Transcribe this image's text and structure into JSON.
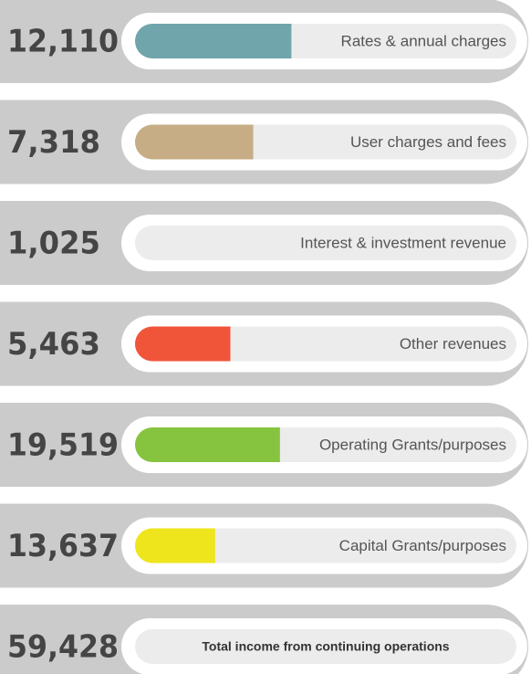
{
  "items": [
    {
      "value": "12,110",
      "label": "Rates & annual charges",
      "fill": 41,
      "color": "#6fa5ab"
    },
    {
      "value": "7,318",
      "label": "User charges and fees",
      "fill": 31,
      "color": "#c6ad85"
    },
    {
      "value": "1,025",
      "label": "Interest & investment revenue",
      "fill": 0,
      "color": "#c6ad85"
    },
    {
      "value": "5,463",
      "label": "Other revenues",
      "fill": 25,
      "color": "#f0553a"
    },
    {
      "value": "19,519",
      "label": "Operating Grants/purposes",
      "fill": 38,
      "color": "#86c440"
    },
    {
      "value": "13,637",
      "label": "Capital Grants/purposes",
      "fill": 21,
      "color": "#eee51c"
    }
  ],
  "total": {
    "value": "59,428",
    "label": "Total income from continuing operations"
  }
}
